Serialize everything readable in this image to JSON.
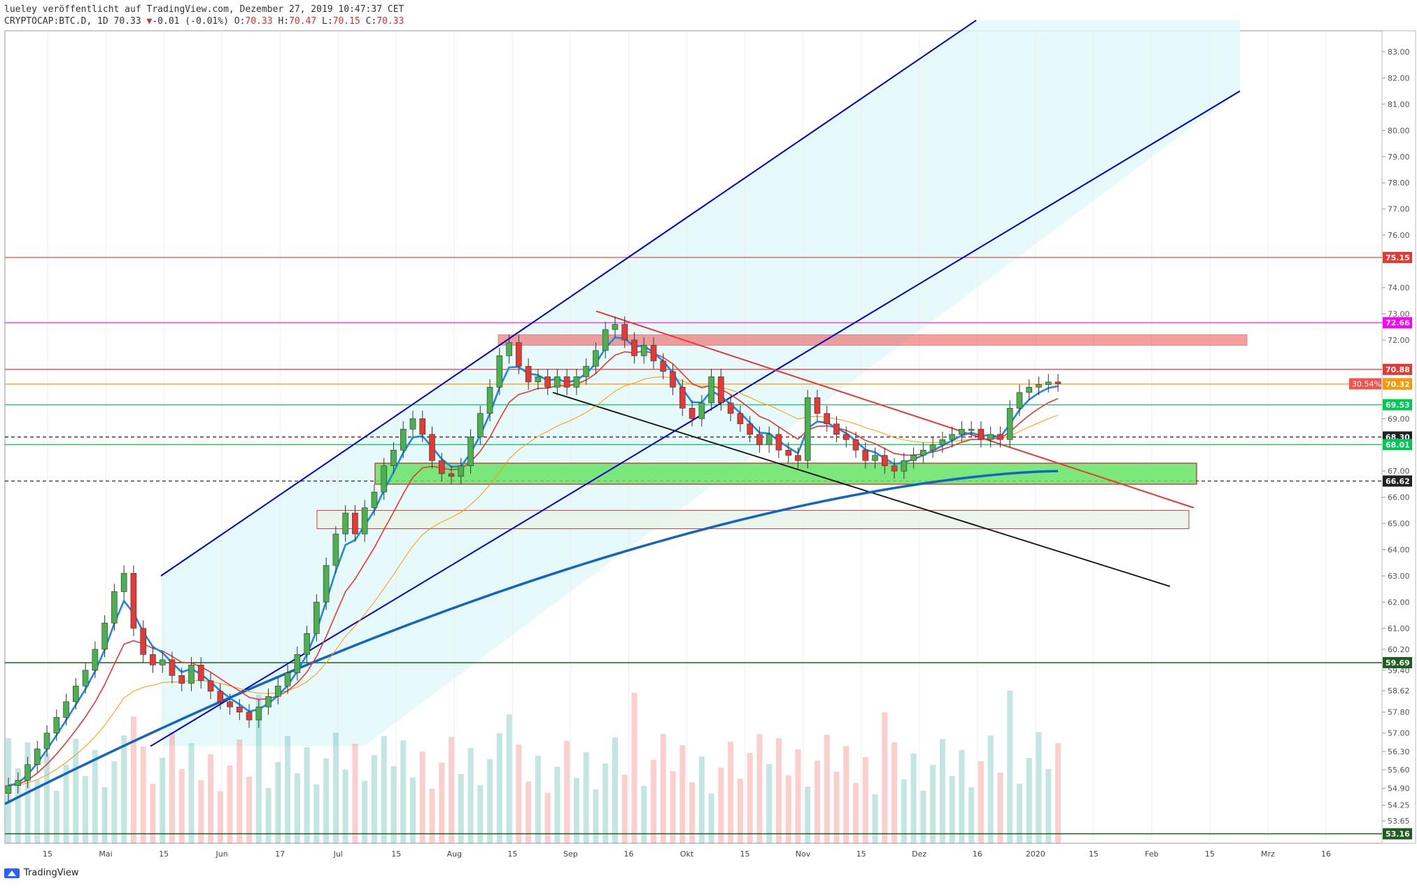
{
  "header": {
    "line1": "lueley veröffentlicht auf TradingView.com, Dezember 27, 2019 10:47:37 CET",
    "symbol": "CRYPTOCAP:BTC.D, 1D",
    "last": "70.33",
    "arrow": "▼",
    "change": "-0.01 (-0.01%)",
    "o_label": "O:",
    "o": "70.33",
    "h_label": "H:",
    "h": "70.47",
    "l_label": "L:",
    "l": "70.15",
    "c_label": "C:",
    "c": "70.33"
  },
  "footer": {
    "brand": "TradingView",
    "logo_icon": "tradingview-logo-icon"
  },
  "colors": {
    "up": "#26a69a",
    "down": "#ef5350",
    "channel": "#0000cc",
    "channel_fill": "#e0f7fa",
    "ema_fast": "#1e88e5",
    "ema_slow": "#e53935",
    "sma_long": "#1565c0",
    "orange": "#ff9800"
  },
  "chart_data": {
    "type": "candlestick",
    "symbol": "CRYPTOCAP:BTC.D",
    "interval": "1D",
    "y_range": [
      52.8,
      83.8
    ],
    "y_ticks": [
      "83.00",
      "82.00",
      "81.00",
      "80.00",
      "79.00",
      "78.00",
      "77.00",
      "76.00",
      "74.00",
      "73.00",
      "72.00",
      "69.00",
      "67.00",
      "66.00",
      "65.00",
      "64.00",
      "63.00",
      "62.00",
      "61.00",
      "60.20",
      "59.40",
      "58.62",
      "57.80",
      "57.00",
      "56.30",
      "55.60",
      "54.90",
      "54.25",
      "53.65"
    ],
    "x_ticks": [
      "15",
      "Mai",
      "15",
      "Jun",
      "17",
      "Jul",
      "15",
      "Aug",
      "15",
      "Sep",
      "16",
      "Okt",
      "15",
      "Nov",
      "15",
      "Dez",
      "16",
      "2020",
      "15",
      "Feb",
      "15",
      "Mrz",
      "16"
    ],
    "price_tags": [
      {
        "value": "75.15",
        "color": "#e53935"
      },
      {
        "value": "72.66",
        "color": "#ff00ff"
      },
      {
        "value": "70.88",
        "color": "#e53935"
      },
      {
        "value": "70.33",
        "color": "#ef5350"
      },
      {
        "value": "70.32",
        "color": "#ff9800"
      },
      {
        "value": "69.53",
        "color": "#00c853"
      },
      {
        "value": "68.30",
        "color": "#212121"
      },
      {
        "value": "68.01",
        "color": "#00c853"
      },
      {
        "value": "66.62",
        "color": "#212121"
      },
      {
        "value": "59.69",
        "color": "#1b5e20"
      },
      {
        "value": "53.16",
        "color": "#1b5e20"
      }
    ],
    "pct_label": "30.54%",
    "horizontal_levels": [
      75.15,
      72.66,
      70.88,
      70.32,
      69.53,
      68.3,
      68.01,
      66.62,
      59.69,
      53.16
    ],
    "zones": [
      {
        "name": "resistance",
        "y": [
          71.8,
          72.2
        ]
      },
      {
        "name": "support",
        "y": [
          66.5,
          67.3
        ]
      },
      {
        "name": "support-light",
        "y": [
          64.8,
          65.5
        ]
      }
    ],
    "close_series": [
      55.0,
      55.2,
      55.8,
      56.4,
      57.0,
      57.6,
      58.2,
      58.8,
      59.4,
      60.2,
      61.2,
      62.4,
      63.1,
      61.0,
      60.0,
      59.6,
      59.8,
      59.2,
      58.9,
      59.6,
      59.0,
      58.6,
      58.2,
      58.0,
      57.8,
      57.5,
      58.0,
      58.4,
      58.8,
      59.3,
      60.0,
      60.8,
      62.0,
      63.4,
      64.6,
      65.4,
      64.6,
      65.6,
      66.2,
      67.2,
      67.8,
      68.6,
      69.0,
      68.4,
      67.4,
      66.9,
      66.8,
      67.2,
      68.3,
      69.2,
      70.2,
      71.4,
      71.9,
      71.0,
      70.4,
      70.6,
      70.2,
      70.6,
      70.2,
      70.6,
      71.0,
      71.6,
      72.4,
      72.6,
      72.0,
      71.4,
      71.8,
      71.2,
      70.8,
      70.2,
      69.4,
      69.0,
      69.6,
      70.6,
      69.6,
      69.2,
      68.8,
      68.4,
      68.0,
      68.4,
      67.8,
      67.6,
      67.4,
      69.8,
      69.2,
      68.8,
      68.4,
      68.2,
      67.8,
      67.4,
      67.6,
      67.2,
      67.0,
      67.4,
      67.6,
      67.8,
      68.0,
      68.2,
      68.4,
      68.6,
      68.6,
      68.2,
      68.4,
      68.2,
      69.4,
      70.0,
      70.2,
      70.3,
      70.4,
      70.33
    ],
    "volume_note": "daily volume bars on lower pane"
  }
}
